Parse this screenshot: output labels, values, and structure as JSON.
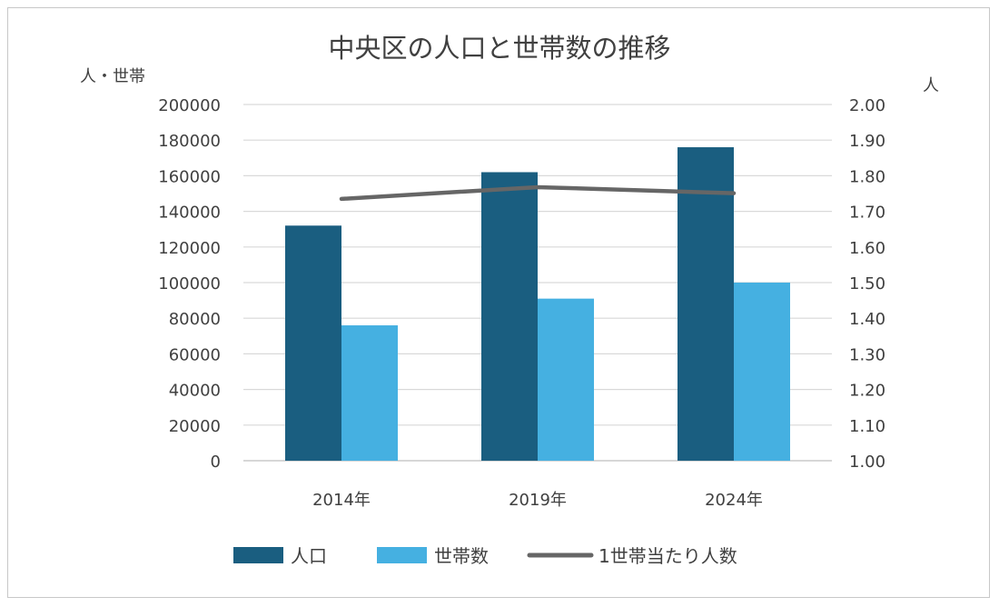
{
  "chart_data": {
    "type": "bar",
    "title": "中央区の人口と世帯数の推移",
    "left_axis_label": "人・世帯",
    "right_axis_label": "人",
    "categories": [
      "2014年",
      "2019年",
      "2024年"
    ],
    "ylim": [
      0,
      200000
    ],
    "y_ticks": [
      "0",
      "20000",
      "40000",
      "60000",
      "80000",
      "100000",
      "120000",
      "140000",
      "160000",
      "180000",
      "200000"
    ],
    "y2lim": [
      1.0,
      2.0
    ],
    "y2_ticks": [
      "1.00",
      "1.10",
      "1.20",
      "1.30",
      "1.40",
      "1.50",
      "1.60",
      "1.70",
      "1.80",
      "1.90",
      "2.00"
    ],
    "grid": true,
    "legend_position": "bottom",
    "series": [
      {
        "name": "人口",
        "type": "bar",
        "axis": "left",
        "color": "#1a5e80",
        "values": [
          132000,
          162000,
          176000
        ]
      },
      {
        "name": "世帯数",
        "type": "bar",
        "axis": "left",
        "color": "#45b0e1",
        "values": [
          76000,
          91000,
          100000
        ]
      },
      {
        "name": "1世帯当たり人数",
        "type": "line",
        "axis": "right",
        "color": "#666666",
        "values": [
          1.735,
          1.768,
          1.751
        ]
      }
    ]
  }
}
